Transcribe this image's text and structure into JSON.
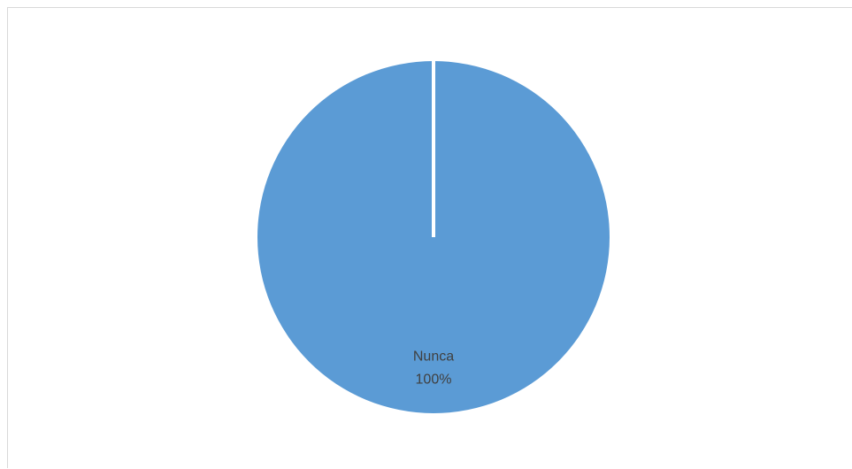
{
  "chart_data": {
    "type": "pie",
    "title": "",
    "slices": [
      {
        "label": "Nunca",
        "value": 100,
        "percent_label": "100%",
        "color": "#5b9bd5"
      }
    ],
    "legend": "none",
    "data_labels": "category-and-percent"
  }
}
